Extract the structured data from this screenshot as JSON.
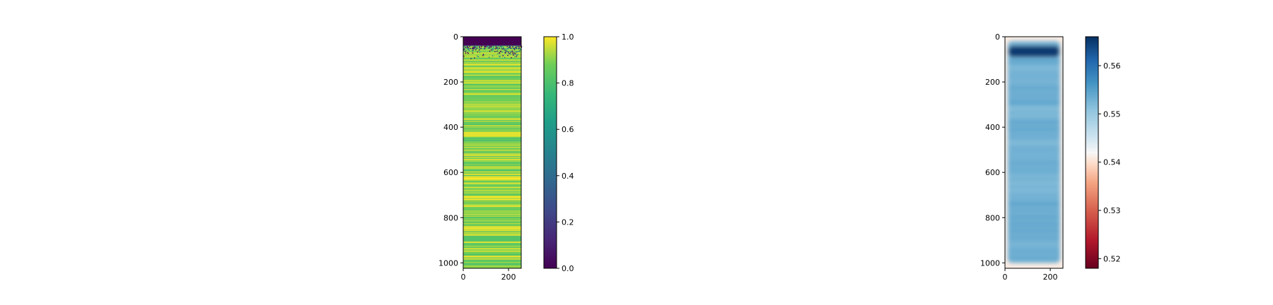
{
  "chart_data": [
    {
      "type": "heatmap",
      "title": "",
      "xlabel": "",
      "ylabel": "",
      "xlim": [
        0,
        256
      ],
      "ylim": [
        1024,
        0
      ],
      "x_ticks": [
        "0",
        "200"
      ],
      "y_ticks": [
        "0",
        "200",
        "400",
        "600",
        "800",
        "1000"
      ],
      "x_tick_values": [
        0,
        200
      ],
      "y_tick_values": [
        0,
        200,
        400,
        600,
        800,
        1000
      ],
      "colormap": "viridis",
      "colorbar": {
        "range": [
          0.0,
          1.0
        ],
        "ticks": [
          "0.0",
          "0.2",
          "0.4",
          "0.6",
          "0.8",
          "1.0"
        ],
        "tick_values": [
          0.0,
          0.2,
          0.4,
          0.6,
          0.8,
          1.0
        ]
      },
      "description_values": {
        "top_band_rows": [
          0,
          40
        ],
        "top_band_value": 0.0,
        "body_value_range": [
          0.8,
          1.0
        ]
      }
    },
    {
      "type": "heatmap",
      "title": "",
      "xlabel": "",
      "ylabel": "",
      "xlim": [
        0,
        256
      ],
      "ylim": [
        1024,
        0
      ],
      "x_ticks": [
        "0",
        "200"
      ],
      "y_ticks": [
        "0",
        "200",
        "400",
        "600",
        "800",
        "1000"
      ],
      "x_tick_values": [
        0,
        200
      ],
      "y_tick_values": [
        0,
        200,
        400,
        600,
        800,
        1000
      ],
      "colormap": "RdBu",
      "colorbar": {
        "range": [
          0.518,
          0.566
        ],
        "ticks": [
          "0.52",
          "0.53",
          "0.54",
          "0.55",
          "0.56"
        ],
        "tick_values": [
          0.52,
          0.53,
          0.54,
          0.55,
          0.56
        ]
      },
      "description_values": {
        "peak_rows": [
          40,
          90
        ],
        "peak_value": 0.565,
        "body_value": 0.553,
        "edge_value": 0.545
      }
    }
  ]
}
